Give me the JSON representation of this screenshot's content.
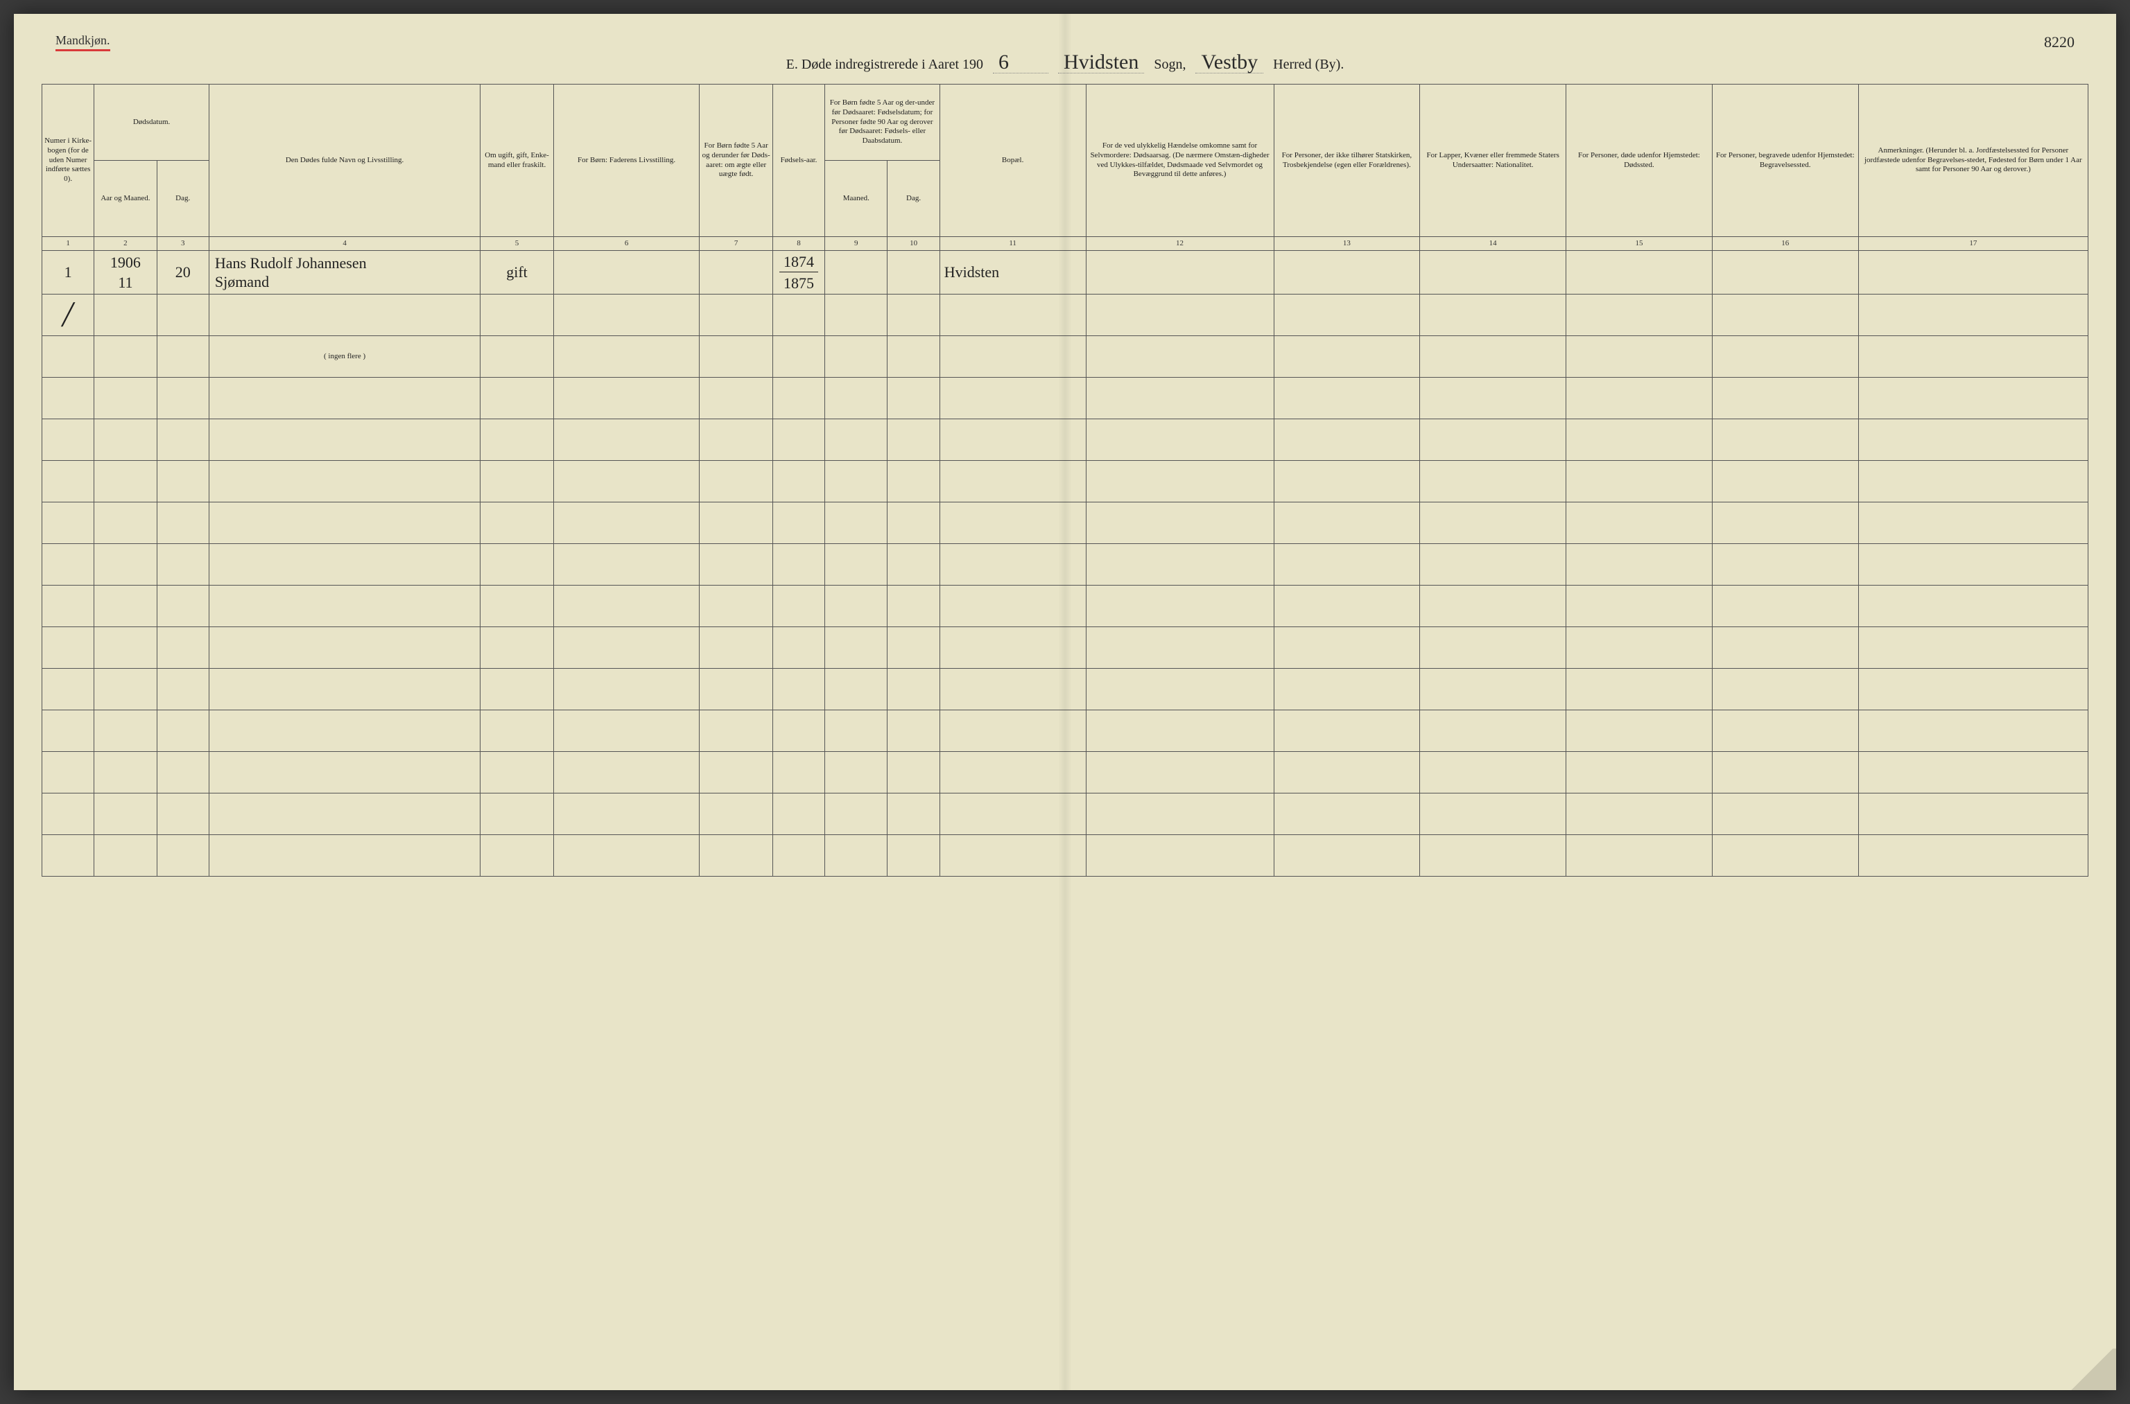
{
  "page": {
    "gender_label": "Mandkjøn.",
    "page_number": "8220",
    "title_prefix": "E.   Døde indregistrerede i Aaret 190",
    "year_suffix": "6",
    "sogn_hw": "Hvidsten",
    "sogn_label": "Sogn,",
    "herred_hw": "Vestby",
    "herred_label": "Herred (By)."
  },
  "headers": {
    "h1": "Numer i Kirke-bogen (for de uden Numer indførte sættes 0).",
    "h2_top": "Dødsdatum.",
    "h2a": "Aar og Maaned.",
    "h2b": "Dag.",
    "h4": "Den Dødes fulde Navn og Livsstilling.",
    "h5": "Om ugift, gift, Enke-mand eller fraskilt.",
    "h6": "For Børn:\nFaderens Livsstilling.",
    "h7": "For Børn fødte 5 Aar og derunder før Døds-aaret: om ægte eller uægte født.",
    "h8": "Fødsels-aar.",
    "h9_top": "For Børn fødte 5 Aar og der-under før Dødsaaret: Fødselsdatum; for Personer fødte 90 Aar og derover før Dødsaaret: Fødsels- eller Daabsdatum.",
    "h9a": "Maaned.",
    "h9b": "Dag.",
    "h11": "Bopæl.",
    "h12": "For de ved ulykkelig Hændelse omkomne samt for Selvmordere: Dødsaarsag. (De nærmere Omstæn-digheder ved Ulykkes-tilfældet, Dødsmaade ved Selvmordet og Bevæggrund til dette anføres.)",
    "h13": "For Personer, der ikke tilhører Statskirken, Trosbekjendelse (egen eller Forældrenes).",
    "h14": "For Lapper, Kvæner eller fremmede Staters Undersaatter: Nationalitet.",
    "h15": "For Personer, døde udenfor Hjemstedet: Dødssted.",
    "h16": "For Personer, begravede udenfor Hjemstedet: Begravelsessted.",
    "h17": "Anmerkninger. (Herunder bl. a. Jordfæstelsessted for Personer jordfæstede udenfor Begravelses-stedet, Fødested for Børn under 1 Aar samt for Personer 90 Aar og derover.)"
  },
  "colnums": [
    "1",
    "2",
    "3",
    "4",
    "5",
    "6",
    "7",
    "8",
    "9",
    "10",
    "11",
    "12",
    "13",
    "14",
    "15",
    "16",
    "17"
  ],
  "row1_year": "1906",
  "row1": {
    "num": "1",
    "month": "11",
    "day": "20",
    "name": "Hans Rudolf Johannesen\nSjømand",
    "status": "gift",
    "faderen": "",
    "born_legit": "",
    "birthyear_top": "1874",
    "birthyear_bot": "1875",
    "birth_m": "",
    "birth_d": "",
    "bopael": "Hvidsten",
    "c12": "",
    "c13": "",
    "c14": "",
    "c15": "",
    "c16": "",
    "c17": ""
  },
  "note_row_text": "( ingen flere )",
  "blank_rows": 12,
  "colors": {
    "paper": "#e8e4c8",
    "ink": "#222222",
    "red_underline": "#d93a3a",
    "rule": "#555555"
  }
}
